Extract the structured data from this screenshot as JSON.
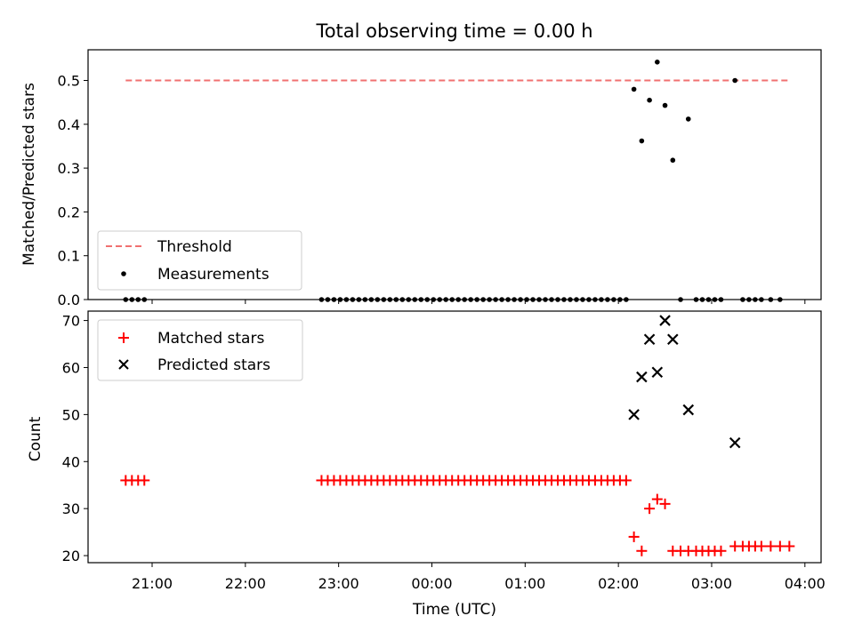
{
  "title": "Total observing time = 0.00 h",
  "chart_data": [
    {
      "type": "scatter",
      "ylabel": "Matched/Predicted stars",
      "ylim": [
        0,
        0.57
      ],
      "yticks": [
        0.0,
        0.1,
        0.2,
        0.3,
        0.4,
        0.5
      ],
      "ytick_labels": [
        "0.0",
        "0.1",
        "0.2",
        "0.3",
        "0.4",
        "0.5"
      ],
      "legend_location": "lower-left",
      "threshold": {
        "name": "Threshold",
        "color": "#f07070",
        "y": 0.5,
        "x_start": "20:43",
        "x_end": "03:50"
      },
      "series": [
        {
          "name": "Measurements",
          "marker": "dot",
          "color": "#000000",
          "points": [
            {
              "x": "20:43",
              "y": 0.0
            },
            {
              "x": "20:47",
              "y": 0.0
            },
            {
              "x": "20:51",
              "y": 0.0
            },
            {
              "x": "20:55",
              "y": 0.0
            },
            {
              "x": "22:49",
              "y": 0.0
            },
            {
              "x": "22:53",
              "y": 0.0
            },
            {
              "x": "22:57",
              "y": 0.0
            },
            {
              "x": "23:01",
              "y": 0.0
            },
            {
              "x": "23:05",
              "y": 0.0
            },
            {
              "x": "23:09",
              "y": 0.0
            },
            {
              "x": "23:13",
              "y": 0.0
            },
            {
              "x": "23:17",
              "y": 0.0
            },
            {
              "x": "23:21",
              "y": 0.0
            },
            {
              "x": "23:25",
              "y": 0.0
            },
            {
              "x": "23:29",
              "y": 0.0
            },
            {
              "x": "23:33",
              "y": 0.0
            },
            {
              "x": "23:37",
              "y": 0.0
            },
            {
              "x": "23:41",
              "y": 0.0
            },
            {
              "x": "23:45",
              "y": 0.0
            },
            {
              "x": "23:49",
              "y": 0.0
            },
            {
              "x": "23:53",
              "y": 0.0
            },
            {
              "x": "23:57",
              "y": 0.0
            },
            {
              "x": "00:01",
              "y": 0.0
            },
            {
              "x": "00:05",
              "y": 0.0
            },
            {
              "x": "00:09",
              "y": 0.0
            },
            {
              "x": "00:13",
              "y": 0.0
            },
            {
              "x": "00:17",
              "y": 0.0
            },
            {
              "x": "00:21",
              "y": 0.0
            },
            {
              "x": "00:25",
              "y": 0.0
            },
            {
              "x": "00:29",
              "y": 0.0
            },
            {
              "x": "00:33",
              "y": 0.0
            },
            {
              "x": "00:37",
              "y": 0.0
            },
            {
              "x": "00:41",
              "y": 0.0
            },
            {
              "x": "00:45",
              "y": 0.0
            },
            {
              "x": "00:49",
              "y": 0.0
            },
            {
              "x": "00:53",
              "y": 0.0
            },
            {
              "x": "00:57",
              "y": 0.0
            },
            {
              "x": "01:01",
              "y": 0.0
            },
            {
              "x": "01:05",
              "y": 0.0
            },
            {
              "x": "01:09",
              "y": 0.0
            },
            {
              "x": "01:13",
              "y": 0.0
            },
            {
              "x": "01:17",
              "y": 0.0
            },
            {
              "x": "01:21",
              "y": 0.0
            },
            {
              "x": "01:25",
              "y": 0.0
            },
            {
              "x": "01:29",
              "y": 0.0
            },
            {
              "x": "01:33",
              "y": 0.0
            },
            {
              "x": "01:37",
              "y": 0.0
            },
            {
              "x": "01:41",
              "y": 0.0
            },
            {
              "x": "01:45",
              "y": 0.0
            },
            {
              "x": "01:49",
              "y": 0.0
            },
            {
              "x": "01:53",
              "y": 0.0
            },
            {
              "x": "01:57",
              "y": 0.0
            },
            {
              "x": "02:01",
              "y": 0.0
            },
            {
              "x": "02:05",
              "y": 0.0
            },
            {
              "x": "02:10",
              "y": 0.48
            },
            {
              "x": "02:15",
              "y": 0.362
            },
            {
              "x": "02:20",
              "y": 0.455
            },
            {
              "x": "02:25",
              "y": 0.542
            },
            {
              "x": "02:30",
              "y": 0.443
            },
            {
              "x": "02:35",
              "y": 0.318
            },
            {
              "x": "02:40",
              "y": 0.0
            },
            {
              "x": "02:45",
              "y": 0.412
            },
            {
              "x": "02:50",
              "y": 0.0
            },
            {
              "x": "02:54",
              "y": 0.0
            },
            {
              "x": "02:58",
              "y": 0.0
            },
            {
              "x": "03:02",
              "y": 0.0
            },
            {
              "x": "03:06",
              "y": 0.0
            },
            {
              "x": "03:15",
              "y": 0.5
            },
            {
              "x": "03:20",
              "y": 0.0
            },
            {
              "x": "03:24",
              "y": 0.0
            },
            {
              "x": "03:28",
              "y": 0.0
            },
            {
              "x": "03:32",
              "y": 0.0
            },
            {
              "x": "03:38",
              "y": 0.0
            },
            {
              "x": "03:44",
              "y": 0.0
            }
          ]
        }
      ]
    },
    {
      "type": "scatter",
      "xlabel": "Time (UTC)",
      "ylabel": "Count",
      "ylim": [
        18.5,
        72
      ],
      "yticks": [
        20,
        30,
        40,
        50,
        60,
        70
      ],
      "ytick_labels": [
        "20",
        "30",
        "40",
        "50",
        "60",
        "70"
      ],
      "xticks": [
        "21:00",
        "22:00",
        "23:00",
        "00:00",
        "01:00",
        "02:00",
        "03:00",
        "04:00"
      ],
      "legend_location": "upper-left",
      "series": [
        {
          "name": "Matched stars",
          "marker": "plus",
          "color": "#ff0000",
          "points": [
            {
              "x": "20:43",
              "y": 36
            },
            {
              "x": "20:47",
              "y": 36
            },
            {
              "x": "20:51",
              "y": 36
            },
            {
              "x": "20:55",
              "y": 36
            },
            {
              "x": "22:49",
              "y": 36
            },
            {
              "x": "22:53",
              "y": 36
            },
            {
              "x": "22:57",
              "y": 36
            },
            {
              "x": "23:01",
              "y": 36
            },
            {
              "x": "23:05",
              "y": 36
            },
            {
              "x": "23:09",
              "y": 36
            },
            {
              "x": "23:13",
              "y": 36
            },
            {
              "x": "23:17",
              "y": 36
            },
            {
              "x": "23:21",
              "y": 36
            },
            {
              "x": "23:25",
              "y": 36
            },
            {
              "x": "23:29",
              "y": 36
            },
            {
              "x": "23:33",
              "y": 36
            },
            {
              "x": "23:37",
              "y": 36
            },
            {
              "x": "23:41",
              "y": 36
            },
            {
              "x": "23:45",
              "y": 36
            },
            {
              "x": "23:49",
              "y": 36
            },
            {
              "x": "23:53",
              "y": 36
            },
            {
              "x": "23:57",
              "y": 36
            },
            {
              "x": "00:01",
              "y": 36
            },
            {
              "x": "00:05",
              "y": 36
            },
            {
              "x": "00:09",
              "y": 36
            },
            {
              "x": "00:13",
              "y": 36
            },
            {
              "x": "00:17",
              "y": 36
            },
            {
              "x": "00:21",
              "y": 36
            },
            {
              "x": "00:25",
              "y": 36
            },
            {
              "x": "00:29",
              "y": 36
            },
            {
              "x": "00:33",
              "y": 36
            },
            {
              "x": "00:37",
              "y": 36
            },
            {
              "x": "00:41",
              "y": 36
            },
            {
              "x": "00:45",
              "y": 36
            },
            {
              "x": "00:49",
              "y": 36
            },
            {
              "x": "00:53",
              "y": 36
            },
            {
              "x": "00:57",
              "y": 36
            },
            {
              "x": "01:01",
              "y": 36
            },
            {
              "x": "01:05",
              "y": 36
            },
            {
              "x": "01:09",
              "y": 36
            },
            {
              "x": "01:13",
              "y": 36
            },
            {
              "x": "01:17",
              "y": 36
            },
            {
              "x": "01:21",
              "y": 36
            },
            {
              "x": "01:25",
              "y": 36
            },
            {
              "x": "01:29",
              "y": 36
            },
            {
              "x": "01:33",
              "y": 36
            },
            {
              "x": "01:37",
              "y": 36
            },
            {
              "x": "01:41",
              "y": 36
            },
            {
              "x": "01:45",
              "y": 36
            },
            {
              "x": "01:49",
              "y": 36
            },
            {
              "x": "01:53",
              "y": 36
            },
            {
              "x": "01:57",
              "y": 36
            },
            {
              "x": "02:01",
              "y": 36
            },
            {
              "x": "02:05",
              "y": 36
            },
            {
              "x": "02:10",
              "y": 24
            },
            {
              "x": "02:15",
              "y": 21
            },
            {
              "x": "02:20",
              "y": 30
            },
            {
              "x": "02:25",
              "y": 32
            },
            {
              "x": "02:30",
              "y": 31
            },
            {
              "x": "02:35",
              "y": 21
            },
            {
              "x": "02:40",
              "y": 21
            },
            {
              "x": "02:45",
              "y": 21
            },
            {
              "x": "02:50",
              "y": 21
            },
            {
              "x": "02:54",
              "y": 21
            },
            {
              "x": "02:58",
              "y": 21
            },
            {
              "x": "03:02",
              "y": 21
            },
            {
              "x": "03:06",
              "y": 21
            },
            {
              "x": "03:15",
              "y": 22
            },
            {
              "x": "03:20",
              "y": 22
            },
            {
              "x": "03:24",
              "y": 22
            },
            {
              "x": "03:28",
              "y": 22
            },
            {
              "x": "03:32",
              "y": 22
            },
            {
              "x": "03:38",
              "y": 22
            },
            {
              "x": "03:44",
              "y": 22
            },
            {
              "x": "03:50",
              "y": 22
            }
          ]
        },
        {
          "name": "Predicted stars",
          "marker": "x",
          "color": "#000000",
          "points": [
            {
              "x": "02:10",
              "y": 50
            },
            {
              "x": "02:15",
              "y": 58
            },
            {
              "x": "02:20",
              "y": 66
            },
            {
              "x": "02:25",
              "y": 59
            },
            {
              "x": "02:30",
              "y": 70
            },
            {
              "x": "02:35",
              "y": 66
            },
            {
              "x": "02:45",
              "y": 51
            },
            {
              "x": "03:15",
              "y": 44
            }
          ]
        }
      ]
    }
  ]
}
